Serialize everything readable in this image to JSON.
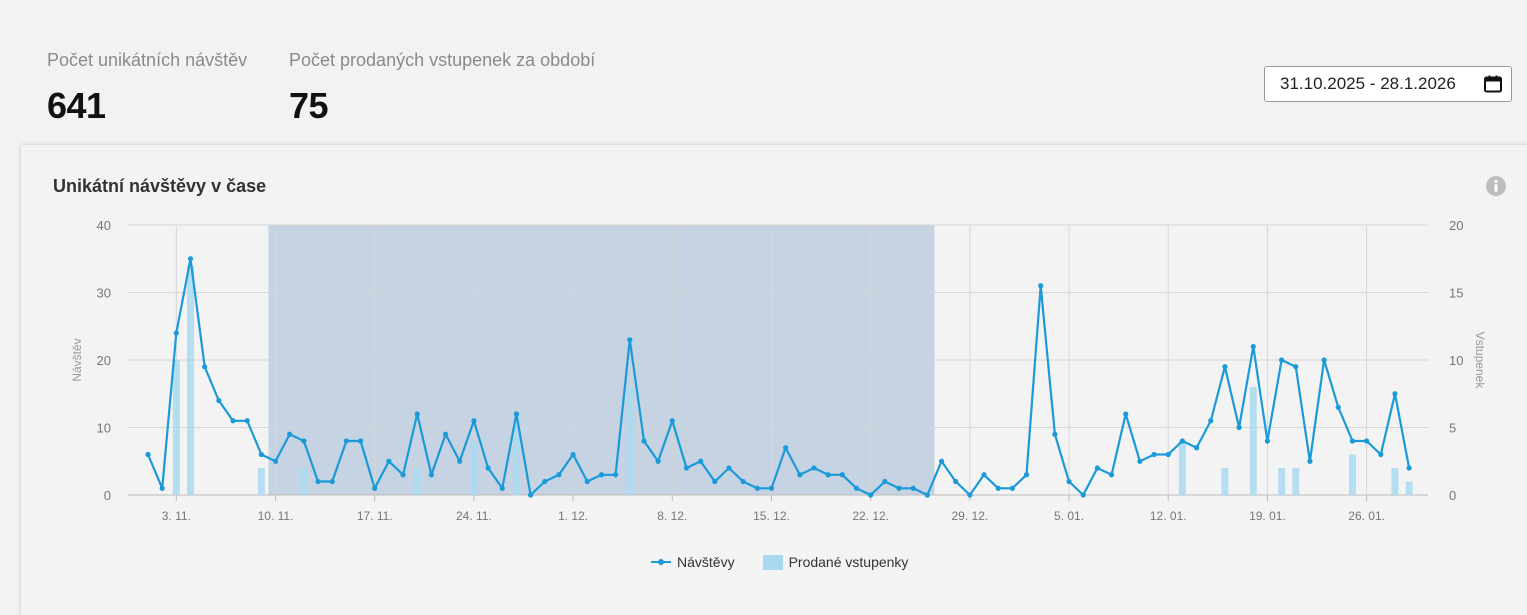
{
  "stats": {
    "visits_label": "Počet unikátních návštěv",
    "visits_value": "641",
    "tickets_label": "Počet prodaných vstupenek za období",
    "tickets_value": "75"
  },
  "date_range": {
    "value": "31.10.2025 - 28.1.2026",
    "icon": "calendar-icon"
  },
  "card": {
    "title": "Unikátní návštěvy v čase",
    "info_icon": "info-icon"
  },
  "legend": {
    "visits": "Návštěvy",
    "tickets": "Prodané vstupenky"
  },
  "colors": {
    "line": "#1a9ad9",
    "bar": "#a9d9f0",
    "highlight": "#c5d3e2"
  },
  "chart_data": {
    "type": "line",
    "title": "Unikátní návštěvy v čase",
    "x_start": "2025-11-01",
    "x_ticks": [
      "3. 11.",
      "10. 11.",
      "17. 11.",
      "24. 11.",
      "1. 12.",
      "8. 12.",
      "15. 12.",
      "22. 12.",
      "29. 12.",
      "5. 01.",
      "12. 01.",
      "19. 01.",
      "26. 01."
    ],
    "ylabel": "Návštěv",
    "y2label": "Vstupenek",
    "ylim": [
      0,
      40
    ],
    "y2lim": [
      0,
      20
    ],
    "y_ticks": [
      "0",
      "10",
      "20",
      "30",
      "40"
    ],
    "y2_ticks": [
      "0",
      "5",
      "10",
      "15",
      "20"
    ],
    "highlight_range": [
      "2025-11-10",
      "2025-12-26"
    ],
    "grid": true,
    "legend_position": "bottom",
    "series": [
      {
        "name": "Návštěvy",
        "type": "line",
        "values": [
          6,
          1,
          24,
          35,
          19,
          14,
          11,
          11,
          6,
          5,
          9,
          8,
          2,
          2,
          8,
          8,
          1,
          5,
          3,
          12,
          3,
          9,
          5,
          11,
          4,
          1,
          12,
          0,
          2,
          3,
          6,
          2,
          3,
          3,
          23,
          8,
          5,
          11,
          4,
          5,
          2,
          4,
          2,
          1,
          1,
          7,
          3,
          4,
          3,
          3,
          1,
          0,
          2,
          1,
          1,
          0,
          5,
          2,
          0,
          3,
          1,
          1,
          3,
          31,
          9,
          2,
          0,
          4,
          3,
          12,
          5,
          6,
          6,
          8,
          7,
          11,
          19,
          10,
          22,
          8,
          20,
          19,
          5,
          20,
          13,
          8,
          8,
          6,
          15,
          4
        ]
      },
      {
        "name": "Prodané vstupenky",
        "type": "bar",
        "axis": "right",
        "values": [
          0,
          0,
          10,
          17,
          0,
          0,
          0,
          0,
          2,
          0,
          0,
          2,
          0,
          0,
          0,
          0,
          0,
          0,
          0,
          2,
          0,
          0,
          0,
          4,
          0,
          0,
          6,
          0,
          0,
          0,
          0,
          0,
          0,
          0,
          8,
          0,
          0,
          0,
          0,
          0,
          0,
          0,
          0,
          0,
          0,
          0,
          0,
          0,
          0,
          0,
          0,
          0,
          0,
          0,
          0,
          0,
          0,
          0,
          0,
          0,
          0,
          0,
          0,
          0,
          0,
          0,
          0,
          0,
          0,
          0,
          0,
          0,
          0,
          4,
          0,
          0,
          2,
          0,
          8,
          0,
          2,
          2,
          0,
          0,
          0,
          3,
          0,
          0,
          2,
          1
        ]
      }
    ]
  }
}
